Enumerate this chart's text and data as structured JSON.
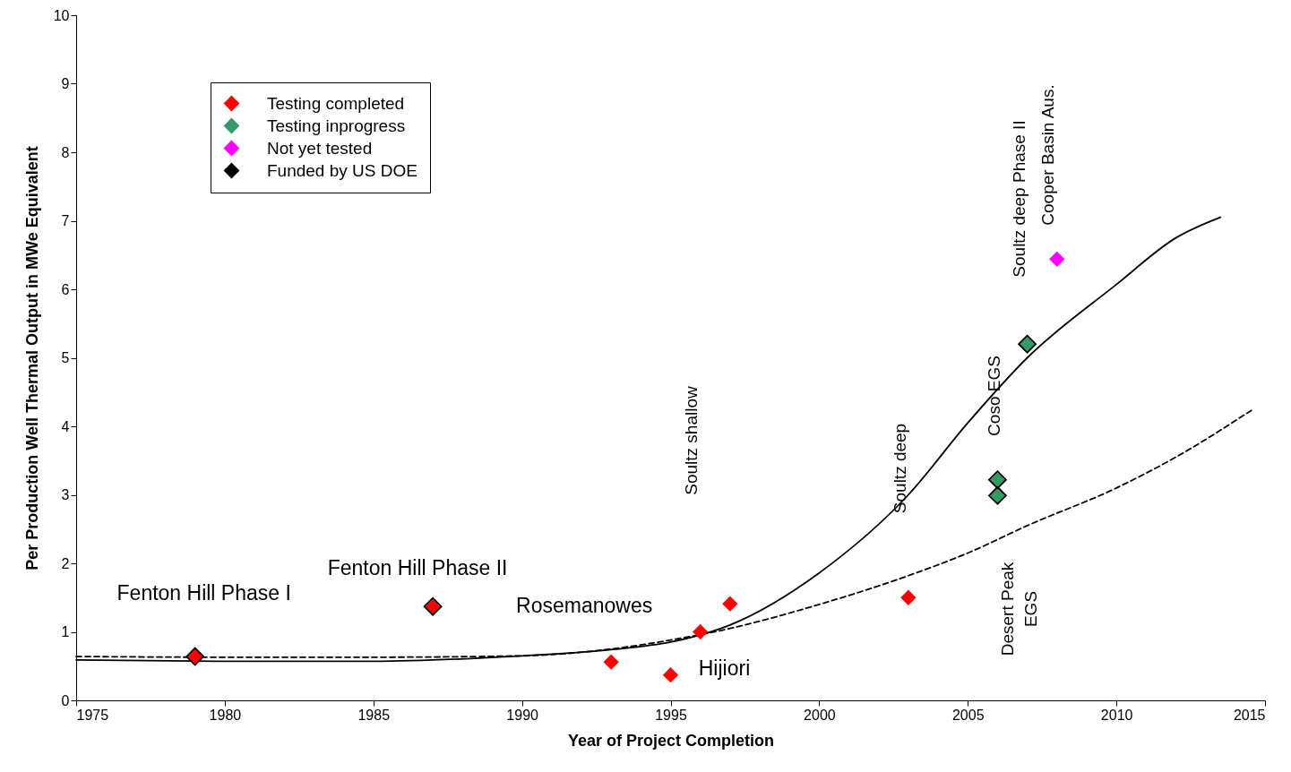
{
  "chart_data": {
    "type": "scatter",
    "xlabel": "Year of Project Completion",
    "ylabel": "Per Production Well Thermal Output in MWe Equivalent",
    "xlim": [
      1975,
      2015
    ],
    "xticks": [
      1975,
      1980,
      1985,
      1990,
      1995,
      2000,
      2005,
      2010,
      2015
    ],
    "ylim": [
      0,
      10
    ],
    "yticks": [
      0,
      1,
      2,
      3,
      4,
      5,
      6,
      7,
      8,
      9,
      10
    ],
    "grid": false,
    "legend": "top left",
    "series": [
      {
        "name": "Testing completed",
        "color": "#ff0000",
        "marker": "diamond",
        "x": [
          1979,
          1987,
          1993,
          1995,
          1996,
          1997,
          2003
        ],
        "values": [
          0.64,
          1.37,
          0.56,
          0.37,
          1.0,
          1.41,
          1.5
        ]
      },
      {
        "name": "Testing inprogress",
        "color": "#339966",
        "marker": "diamond",
        "x": [
          2006,
          2006,
          2007
        ],
        "values": [
          3.22,
          2.99,
          5.2
        ]
      },
      {
        "name": "Not yet tested",
        "color": "#ff00ff",
        "marker": "diamond",
        "x": [
          2008
        ],
        "values": [
          6.44
        ]
      },
      {
        "name": "Funded by US DOE",
        "color": "#000000",
        "marker": "diamond",
        "x": [
          1979,
          1987,
          2006,
          2006,
          2007
        ],
        "values": [
          0.64,
          1.37,
          3.22,
          2.99,
          5.2
        ]
      },
      {
        "type": "line",
        "color": "#000000",
        "line_style": "solid",
        "x": [
          1975,
          1980,
          1985,
          1990,
          1993,
          1995,
          1997,
          2000,
          2003,
          2005,
          2007,
          2010,
          2012,
          2013.5
        ],
        "values": [
          0.59,
          0.57,
          0.57,
          0.65,
          0.74,
          0.85,
          1.1,
          1.86,
          3.0,
          4.05,
          5.0,
          6.07,
          6.75,
          7.05
        ]
      },
      {
        "type": "line",
        "color": "#000000",
        "line_style": "dashed",
        "x": [
          1975,
          1980,
          1985,
          1990,
          1993,
          1995,
          1997,
          2000,
          2003,
          2005,
          2007,
          2010,
          2012,
          2014.6
        ],
        "values": [
          0.64,
          0.63,
          0.63,
          0.65,
          0.75,
          0.88,
          1.05,
          1.4,
          1.82,
          2.15,
          2.55,
          3.1,
          3.55,
          4.25
        ]
      }
    ],
    "annotations": [
      {
        "text": "Fenton Hill Phase I",
        "x": 1979,
        "y": 0.64
      },
      {
        "text": "Fenton Hill Phase II",
        "x": 1987,
        "y": 1.37
      },
      {
        "text": "Rosemanowes",
        "x": 1993,
        "y": 0.56
      },
      {
        "text": "Hijiori",
        "x": 1995,
        "y": 0.37
      },
      "Soultz shallow",
      "Soultz deep",
      "Coso EGS",
      "Soultz deep Phase II",
      "Cooper Basin Aus.",
      "Desert Peak\nEGS"
    ]
  }
}
